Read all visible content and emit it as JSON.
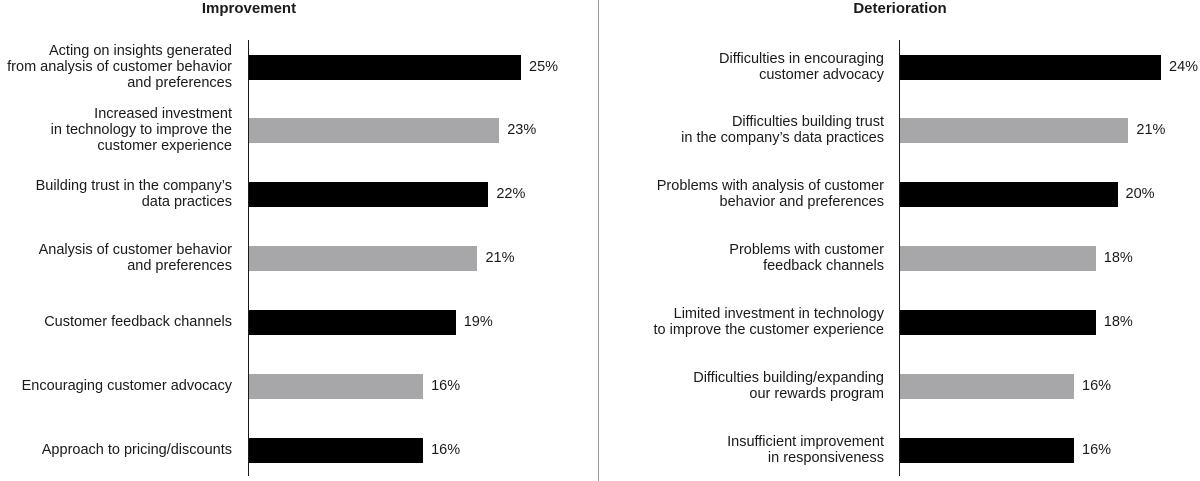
{
  "chart_data": [
    {
      "type": "bar",
      "orientation": "horizontal",
      "title": "Improvement",
      "categories": [
        "Acting on insights generated\nfrom analysis of customer behavior\nand preferences",
        "Increased investment\nin technology to improve the\ncustomer experience",
        "Building trust in the company’s\ndata practices",
        "Analysis of customer behavior\nand preferences",
        "Customer feedback channels",
        "Encouraging customer advocacy",
        "Approach to pricing/discounts"
      ],
      "values": [
        25,
        23,
        22,
        21,
        19,
        16,
        16
      ],
      "value_labels": [
        "25%",
        "23%",
        "22%",
        "21%",
        "19%",
        "16%",
        "16%"
      ],
      "bar_colors": [
        "#000000",
        "#a7a7a9",
        "#000000",
        "#a7a7a9",
        "#000000",
        "#a7a7a9",
        "#000000"
      ],
      "xlim": [
        0,
        25
      ]
    },
    {
      "type": "bar",
      "orientation": "horizontal",
      "title": "Deterioration",
      "categories": [
        "Difficulties in encouraging\ncustomer advocacy",
        "Difficulties building trust\nin the company’s data practices",
        "Problems with analysis of customer\nbehavior and preferences",
        "Problems with customer\nfeedback channels",
        "Limited investment in technology\nto improve the customer experience",
        "Difficulties building/expanding\nour rewards program",
        "Insufficient improvement\nin responsiveness"
      ],
      "values": [
        24,
        21,
        20,
        18,
        18,
        16,
        16
      ],
      "value_labels": [
        "24%",
        "21%",
        "20%",
        "18%",
        "18%",
        "16%",
        "16%"
      ],
      "bar_colors": [
        "#000000",
        "#a7a7a9",
        "#000000",
        "#a7a7a9",
        "#000000",
        "#a7a7a9",
        "#000000"
      ],
      "xlim": [
        0,
        24
      ]
    }
  ]
}
